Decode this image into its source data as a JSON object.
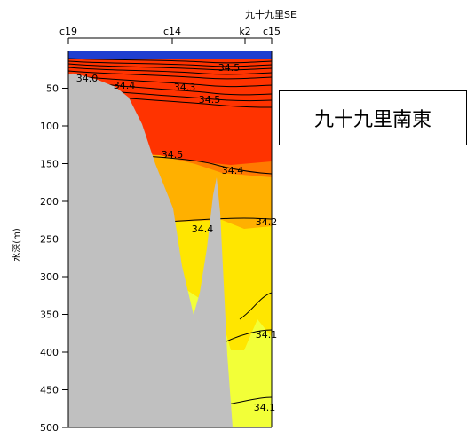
{
  "section_label": "九十九里SE",
  "title_box": "九十九里南東",
  "colors": {
    "surface_blue": "#1f3fd0",
    "bathymetry": "#c0c0c0",
    "band_high": "#ff3300",
    "band_mid": "#ff7a00",
    "band_low": "#ffb000",
    "band_lower": "#ffe600",
    "band_lowest": "#f2ff38"
  },
  "chart_data": {
    "type": "heatmap",
    "ylabel": "水深(m)",
    "ylim": [
      0,
      500
    ],
    "yaxis_inverted": true,
    "yticks": [
      50,
      100,
      150,
      200,
      250,
      300,
      350,
      400,
      450,
      500
    ],
    "stations": [
      "c19",
      "c14",
      "k2",
      "c15"
    ],
    "contours": [
      {
        "value": "34.0"
      },
      {
        "value": "34.4"
      },
      {
        "value": "34.3"
      },
      {
        "value": "34.5"
      },
      {
        "value": "34.5"
      },
      {
        "value": "34.5"
      },
      {
        "value": "34.4"
      },
      {
        "value": "34.4"
      },
      {
        "value": "34.2"
      },
      {
        "value": "34.1"
      },
      {
        "value": "34.1"
      }
    ]
  }
}
